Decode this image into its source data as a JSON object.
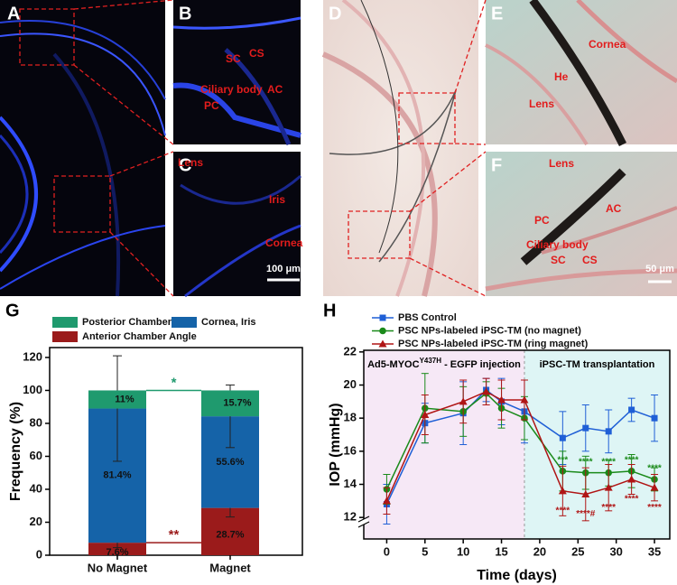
{
  "image_panels": [
    {
      "letter": "A"
    },
    {
      "letter": "B",
      "labels": [
        "SC",
        "CS",
        "Ciliary body",
        "AC",
        "PC"
      ]
    },
    {
      "letter": "C",
      "labels": [
        "Lens",
        "Iris",
        "Cornea"
      ],
      "scale_bar": "100 μm"
    },
    {
      "letter": "D"
    },
    {
      "letter": "E",
      "labels": [
        "Cornea",
        "He",
        "Lens"
      ]
    },
    {
      "letter": "F",
      "labels": [
        "Lens",
        "PC",
        "AC",
        "Ciliary body",
        "SC",
        "CS"
      ],
      "scale_bar": "50 μm"
    }
  ],
  "chart_data": [
    {
      "type": "stacked_bar",
      "panel_letter": "G",
      "ylabel": "Frequency (%)",
      "categories": [
        "No Magnet",
        "Magnet"
      ],
      "series": [
        {
          "name": "Anterior Chamber Angle",
          "color": "#9b1b1b",
          "values": [
            7.6,
            28.7
          ],
          "value_labels": [
            "7.6%",
            "28.7%"
          ],
          "errors": [
            3,
            5.5
          ]
        },
        {
          "name": "Cornea, Iris",
          "color": "#1563a8",
          "values": [
            81.4,
            55.6
          ],
          "value_labels": [
            "81.4%",
            "55.6%"
          ],
          "errors": [
            32,
            19
          ]
        },
        {
          "name": "Posterior Chamber",
          "color": "#1f9a6e",
          "values": [
            11,
            15.7
          ],
          "value_labels": [
            "11%",
            "15.7%"
          ]
        }
      ],
      "significance": [
        {
          "text": "*",
          "series": 2,
          "color": "#1f9a6e"
        },
        {
          "text": "**",
          "series": 0,
          "color": "#9b1b1b"
        }
      ],
      "ylim": [
        0,
        126
      ],
      "yticks": [
        0,
        20,
        40,
        60,
        80,
        100,
        120
      ]
    },
    {
      "type": "line",
      "panel_letter": "H",
      "xlabel": "Time (days)",
      "ylabel": "IOP (mmHg)",
      "x": [
        0,
        5,
        10,
        13,
        15,
        18,
        23,
        26,
        29,
        32,
        35
      ],
      "series": [
        {
          "name": "PBS Control",
          "color": "#1f5fd6",
          "marker": "square",
          "values": [
            12.8,
            17.7,
            18.3,
            19.7,
            19.0,
            18.4,
            16.8,
            17.4,
            17.2,
            18.5,
            18.0
          ],
          "errors": [
            1.2,
            1.2,
            1.9,
            0.7,
            1.4,
            1.9,
            1.6,
            1.4,
            1.3,
            0.7,
            1.4
          ]
        },
        {
          "name": "PSC NPs-labeled iPSC-TM (no magnet)",
          "color": "#1a8a1a",
          "marker": "circle",
          "values": [
            13.7,
            18.6,
            18.4,
            19.5,
            18.6,
            18.0,
            14.8,
            14.7,
            14.7,
            14.8,
            14.3
          ],
          "errors": [
            0.9,
            2.1,
            1.5,
            0.7,
            1.2,
            1.3,
            1.2,
            1.0,
            0.8,
            1.0,
            0.7
          ],
          "significance_labels": [
            null,
            null,
            null,
            null,
            null,
            null,
            "***",
            "****",
            "****",
            "****",
            "****"
          ]
        },
        {
          "name": "PSC NPs-labeled iPSC-TM (ring magnet)",
          "color": "#b01515",
          "marker": "triangle",
          "values": [
            13.0,
            18.2,
            19.0,
            19.6,
            19.1,
            19.1,
            13.6,
            13.4,
            13.8,
            14.3,
            13.8
          ],
          "errors": [
            0.8,
            1.2,
            1.3,
            0.8,
            1.2,
            1.2,
            1.5,
            1.6,
            1.4,
            0.9,
            0.8
          ],
          "significance_labels": [
            null,
            null,
            null,
            null,
            null,
            null,
            "****",
            "****#",
            "****",
            "****",
            "****"
          ]
        }
      ],
      "region_boundary": 18,
      "region_labels": [
        {
          "text": "Ad5-MYOC",
          "superscript": "Y437H",
          "suffix": " - EGFP injection"
        },
        {
          "text": "iPSC-TM transplantation"
        }
      ],
      "xlim": [
        -3,
        37
      ],
      "xticks": [
        0,
        5,
        10,
        15,
        20,
        25,
        30,
        35
      ],
      "ylim": [
        10.7,
        22.1
      ],
      "yticks": [
        12,
        14,
        16,
        18,
        20,
        22
      ]
    }
  ]
}
